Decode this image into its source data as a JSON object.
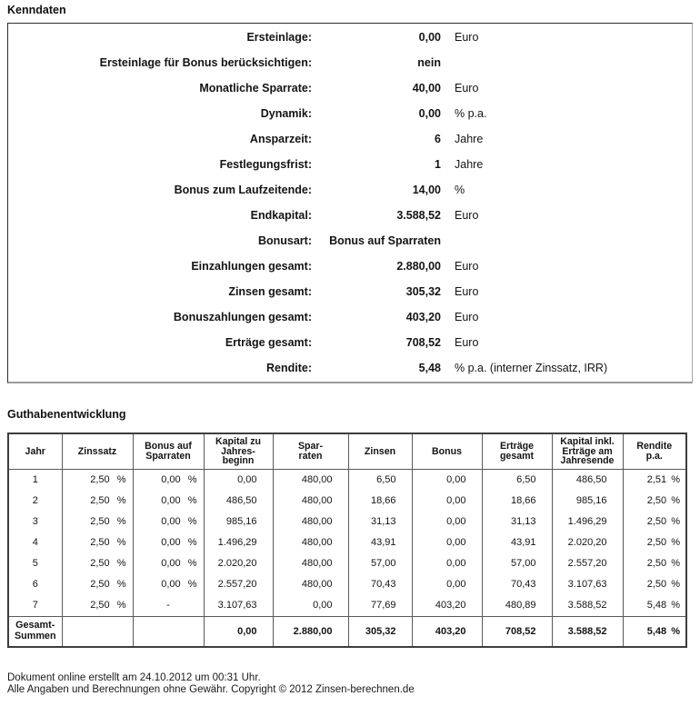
{
  "sections": {
    "kenndaten_title": "Kenndaten",
    "guthaben_title": "Guthabenentwicklung"
  },
  "kenndaten": {
    "rows": [
      {
        "label": "Ersteinlage:",
        "value": "0,00",
        "unit": "Euro"
      },
      {
        "label": "Ersteinlage für Bonus berücksichtigen:",
        "value": "nein",
        "unit": ""
      },
      {
        "label": "Monatliche Sparrate:",
        "value": "40,00",
        "unit": "Euro"
      },
      {
        "label": "Dynamik:",
        "value": "0,00",
        "unit": "% p.a."
      },
      {
        "label": "Ansparzeit:",
        "value": "6",
        "unit": "Jahre"
      },
      {
        "label": "Festlegungsfrist:",
        "value": "1",
        "unit": "Jahre"
      },
      {
        "label": "Bonus zum Laufzeitende:",
        "value": "14,00",
        "unit": "%"
      },
      {
        "label": "Endkapital:",
        "value": "3.588,52",
        "unit": "Euro"
      },
      {
        "label": "Bonusart:",
        "value": "Bonus auf Sparraten",
        "unit": ""
      },
      {
        "label": "Einzahlungen gesamt:",
        "value": "2.880,00",
        "unit": "Euro"
      },
      {
        "label": "Zinsen gesamt:",
        "value": "305,32",
        "unit": "Euro"
      },
      {
        "label": "Bonuszahlungen gesamt:",
        "value": "403,20",
        "unit": "Euro"
      },
      {
        "label": "Erträge gesamt:",
        "value": "708,52",
        "unit": "Euro"
      },
      {
        "label": "Rendite:",
        "value": "5,48",
        "unit": "% p.a. (interner Zinssatz, IRR)"
      }
    ]
  },
  "guthaben": {
    "headers": [
      "Jahr",
      "Zinssatz",
      "Bonus auf\nSparraten",
      "Kapital zu\nJahres-\nbeginn",
      "Spar-\nraten",
      "Zinsen",
      "Bonus",
      "Erträge\ngesamt",
      "Kapital inkl.\nErträge am\nJahresende",
      "Rendite\np.a."
    ],
    "rows": [
      [
        "1",
        "2,50 %",
        "0,00 %",
        "0,00",
        "480,00",
        "6,50",
        "0,00",
        "6,50",
        "486,50",
        "2,51 %"
      ],
      [
        "2",
        "2,50 %",
        "0,00 %",
        "486,50",
        "480,00",
        "18,66",
        "0,00",
        "18,66",
        "985,16",
        "2,50 %"
      ],
      [
        "3",
        "2,50 %",
        "0,00 %",
        "985,16",
        "480,00",
        "31,13",
        "0,00",
        "31,13",
        "1.496,29",
        "2,50 %"
      ],
      [
        "4",
        "2,50 %",
        "0,00 %",
        "1.496,29",
        "480,00",
        "43,91",
        "0,00",
        "43,91",
        "2.020,20",
        "2,50 %"
      ],
      [
        "5",
        "2,50 %",
        "0,00 %",
        "2.020,20",
        "480,00",
        "57,00",
        "0,00",
        "57,00",
        "2.557,20",
        "2,50 %"
      ],
      [
        "6",
        "2,50 %",
        "0,00 %",
        "2.557,20",
        "480,00",
        "70,43",
        "0,00",
        "70,43",
        "3.107,63",
        "2,50 %"
      ],
      [
        "7",
        "2,50 %",
        "-",
        "3.107,63",
        "0,00",
        "77,69",
        "403,20",
        "480,89",
        "3.588,52",
        "5,48 %"
      ]
    ],
    "totals": [
      "Gesamt-\nSummen",
      "",
      "",
      "0,00",
      "2.880,00",
      "305,32",
      "403,20",
      "708,52",
      "3.588,52",
      "5,48 %"
    ]
  },
  "footer": {
    "line1": "Dokument online erstellt am 24.10.2012 um 00:31 Uhr.",
    "line2": "Alle Angaben und Berechnungen ohne Gewähr. Copyright © 2012 Zinsen-berechnen.de"
  }
}
